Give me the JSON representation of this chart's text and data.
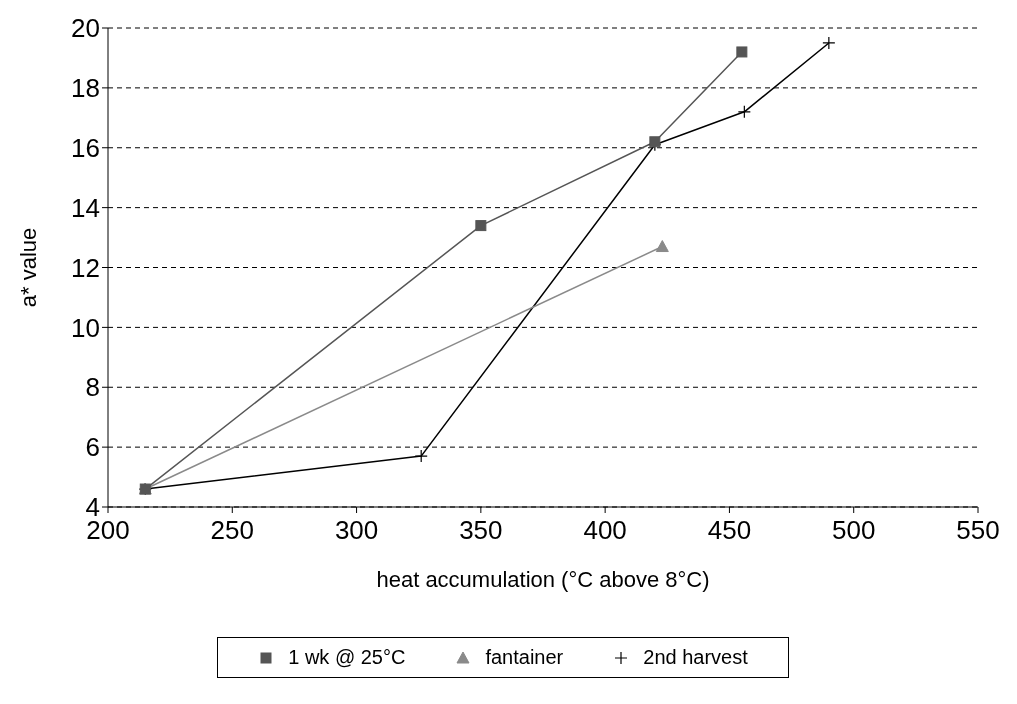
{
  "chart_data": {
    "type": "line",
    "xlabel": "heat accumulation (°C above 8°C)",
    "ylabel": "a* value",
    "xlim": [
      200,
      550
    ],
    "xticks": [
      200,
      250,
      300,
      350,
      400,
      450,
      500,
      550
    ],
    "ylim": [
      4,
      20
    ],
    "yticks": [
      4,
      6,
      8,
      10,
      12,
      14,
      16,
      18,
      20
    ],
    "grid": "y",
    "legend": "bottom",
    "series": [
      {
        "name": "1 wk @ 25°C",
        "color": "#555555",
        "marker": "square",
        "x": [
          215,
          350,
          420,
          455
        ],
        "values": [
          4.6,
          13.4,
          16.2,
          19.2
        ]
      },
      {
        "name": "fantainer",
        "color": "#8a8a8a",
        "marker": "triangle",
        "x": [
          215,
          423
        ],
        "values": [
          4.6,
          12.7
        ]
      },
      {
        "name": "2nd harvest",
        "color": "#000000",
        "marker": "cross",
        "x": [
          215,
          326,
          420,
          456,
          490
        ],
        "values": [
          4.6,
          5.7,
          16.1,
          17.2,
          19.5
        ]
      }
    ]
  }
}
